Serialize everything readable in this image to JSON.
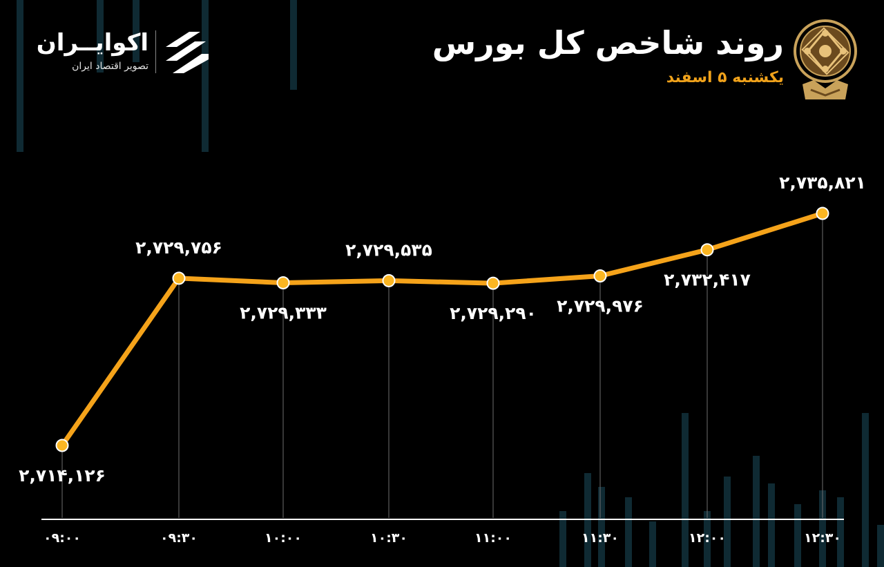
{
  "header": {
    "title": "روند شاخص کل بورس",
    "subtitle": "یکشنبه ۵ اسفند"
  },
  "brand": {
    "name": "اکوایــران",
    "tagline": "تصویر اقتصاد ایران"
  },
  "colors": {
    "background": "#000000",
    "line": "#f5a31a",
    "point_fill": "#fbb622",
    "point_stroke": "#ffffff",
    "subtitle": "#f0a21b",
    "text": "#ffffff",
    "decor_bars": "#0f2a33"
  },
  "chart_data": {
    "type": "line",
    "categories": [
      "۰۹:۰۰",
      "۰۹:۳۰",
      "۱۰:۰۰",
      "۱۰:۳۰",
      "۱۱:۰۰",
      "۱۱:۳۰",
      "۱۲:۰۰",
      "۱۲:۳۰"
    ],
    "series": [
      {
        "values": [
          2714126,
          2729756,
          2729333,
          2729535,
          2729290,
          2729976,
          2732417,
          2735821
        ],
        "labels": [
          "۲,۷۱۴,۱۲۶",
          "۲,۷۲۹,۷۵۶",
          "۲,۷۲۹,۳۳۳",
          "۲,۷۲۹,۵۳۵",
          "۲,۷۲۹,۲۹۰",
          "۲,۷۲۹,۹۷۶",
          "۲,۷۳۲,۴۱۷",
          "۲,۷۳۵,۸۲۱"
        ],
        "label_positions": [
          "below",
          "above",
          "below",
          "above",
          "below",
          "below",
          "below",
          "above"
        ]
      }
    ],
    "ylim": [
      2712000,
      2737000
    ],
    "grid": false,
    "legend": "none"
  }
}
